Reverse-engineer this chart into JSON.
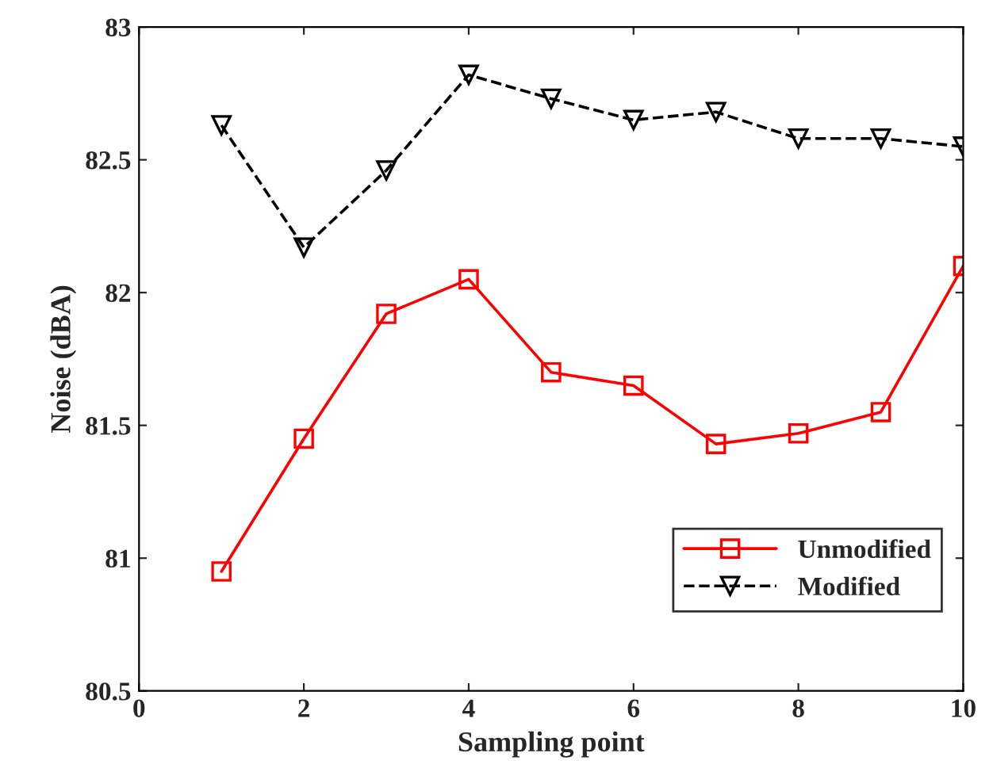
{
  "chart_data": {
    "type": "line",
    "xlabel": "Sampling point",
    "ylabel": "Noise (dBA)",
    "x": [
      1,
      2,
      3,
      4,
      5,
      6,
      7,
      8,
      9,
      10
    ],
    "series": [
      {
        "name": "Unmodified",
        "color": "#ff0000",
        "marker": "square",
        "line_style": "solid",
        "values": [
          80.95,
          81.45,
          81.92,
          82.05,
          81.7,
          81.65,
          81.43,
          81.47,
          81.55,
          82.1
        ]
      },
      {
        "name": "Modified",
        "color": "#000000",
        "marker": "triangle",
        "line_style": "dashed",
        "values": [
          82.63,
          82.17,
          82.46,
          82.82,
          82.73,
          82.65,
          82.68,
          82.58,
          82.58,
          82.55
        ]
      }
    ],
    "xlim": [
      0,
      10
    ],
    "xticks": [
      0,
      2,
      4,
      6,
      8,
      10
    ],
    "ylim": [
      80.5,
      83
    ],
    "yticks": [
      80.5,
      81,
      81.5,
      82,
      82.5,
      83
    ],
    "grid": false,
    "legend": "bottom right"
  }
}
